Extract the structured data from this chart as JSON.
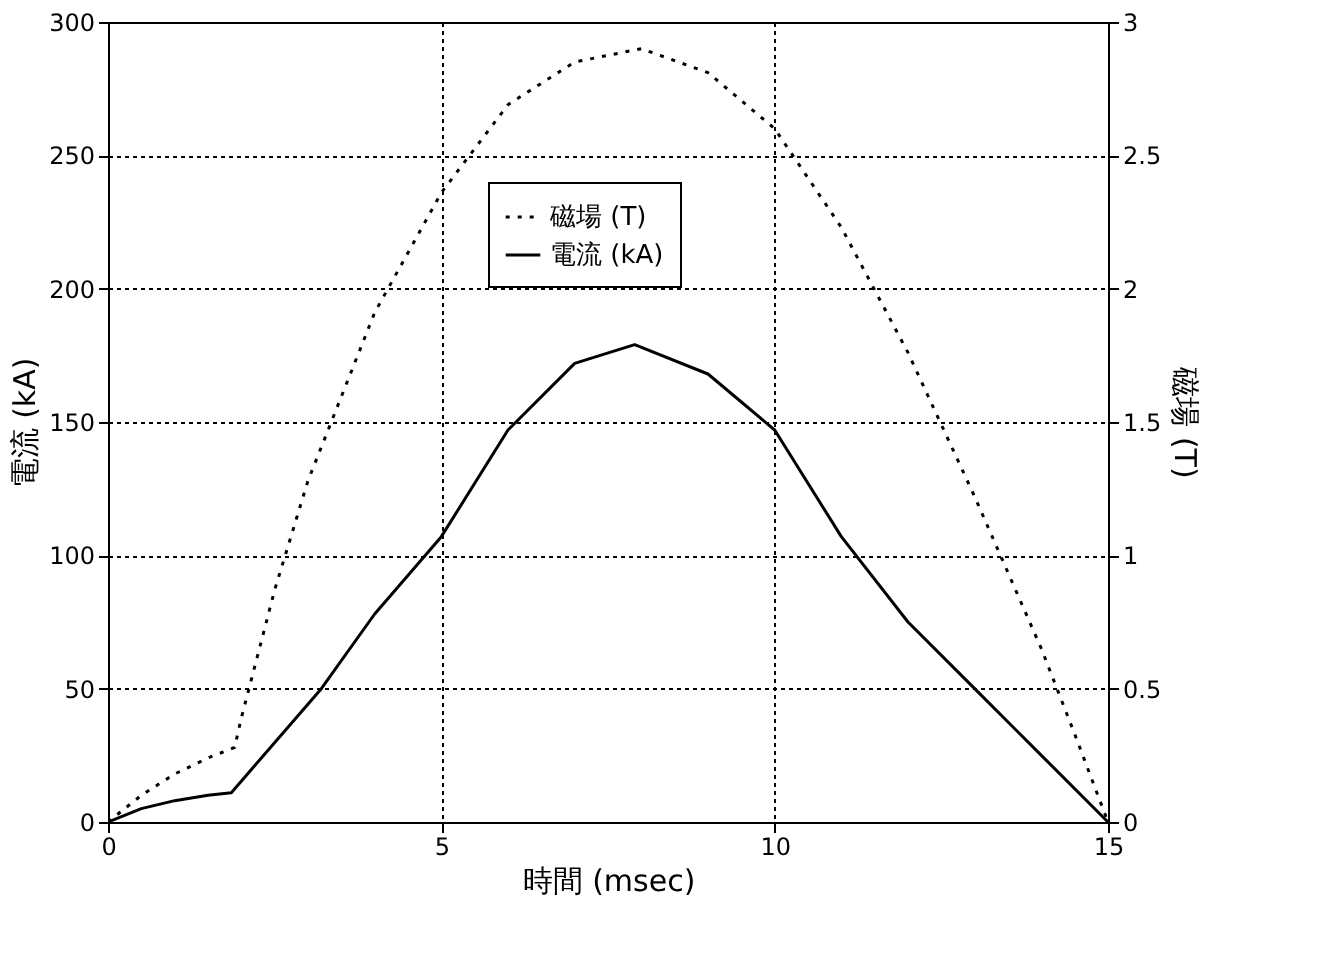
{
  "chart_data": {
    "type": "line",
    "xlabel": "時間 (msec)",
    "ylabel": "電流 (kA)",
    "y2label": "磁場 (T)",
    "xlim": [
      0,
      15
    ],
    "xticks": [
      0,
      5,
      10,
      15
    ],
    "ylim": [
      0,
      300
    ],
    "yticks": [
      0,
      50,
      100,
      150,
      200,
      250,
      300
    ],
    "y2lim": [
      0,
      3
    ],
    "y2ticks": [
      0,
      0.5,
      1,
      1.5,
      2,
      2.5,
      3
    ],
    "grid": true,
    "legend": "top",
    "series": [
      {
        "name": "磁場 (T)",
        "color": "#000000",
        "axis": "y2",
        "line_style": "dotted",
        "x": [
          0,
          0.5,
          1,
          1.5,
          1.9,
          2,
          2.5,
          3,
          4,
          5,
          6,
          7,
          8,
          9,
          10,
          11,
          12,
          13,
          14,
          14.5,
          15
        ],
        "values": [
          0,
          0.1,
          0.18,
          0.24,
          0.28,
          0.39,
          0.87,
          1.28,
          1.91,
          2.36,
          2.69,
          2.85,
          2.9,
          2.81,
          2.6,
          2.23,
          1.76,
          1.22,
          0.65,
          0.33,
          0
        ]
      },
      {
        "name": "電流 (kA)",
        "color": "#000000",
        "line_style": "solid",
        "x": [
          0,
          0.5,
          1,
          1.5,
          1.85,
          3.2,
          4,
          5,
          6,
          7,
          7.9,
          9,
          10,
          11,
          12,
          13,
          14,
          15
        ],
        "values": [
          0,
          5,
          8,
          10,
          11,
          50,
          78,
          107,
          147,
          172,
          179,
          168,
          147,
          107,
          75,
          50,
          25,
          0
        ]
      }
    ]
  }
}
